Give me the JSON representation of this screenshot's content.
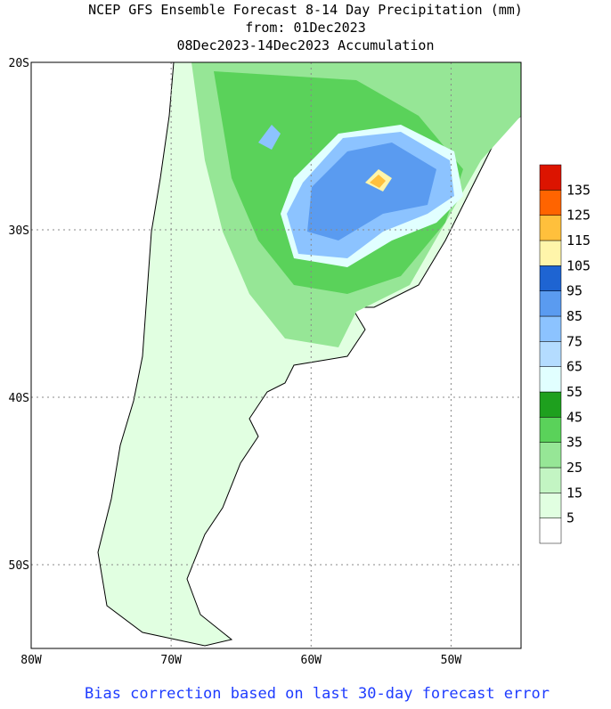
{
  "header": {
    "title": "NCEP GFS Ensemble Forecast 8-14 Day Precipitation (mm)",
    "issued": "from: 01Dec2023",
    "period": "08Dec2023-14Dec2023 Accumulation"
  },
  "map": {
    "lat_ticks": [
      {
        "value": -20,
        "label": "20S"
      },
      {
        "value": -30,
        "label": "30S"
      },
      {
        "value": -40,
        "label": "40S"
      },
      {
        "value": -50,
        "label": "50S"
      }
    ],
    "lon_ticks": [
      {
        "value": -80,
        "label": "80W"
      },
      {
        "value": -70,
        "label": "70W"
      },
      {
        "value": -60,
        "label": "60W"
      },
      {
        "value": -50,
        "label": "50W"
      }
    ],
    "lat_range": [
      -55,
      -20
    ],
    "lon_range": [
      -80,
      -45
    ],
    "grid": true
  },
  "legend": {
    "levels": [
      5,
      15,
      25,
      35,
      45,
      55,
      65,
      75,
      85,
      95,
      105,
      115,
      125,
      135
    ],
    "colors": [
      "#ffffff",
      "#e1ffe1",
      "#c3f5c3",
      "#96e696",
      "#5ad25a",
      "#1ea01e",
      "#e1ffff",
      "#b4dcff",
      "#8cc3ff",
      "#5a9bf0",
      "#1e64d2",
      "#fff5aa",
      "#ffc03c",
      "#ff6400",
      "#dc1400"
    ]
  },
  "footer": "Bias correction based on last 30-day forecast error"
}
